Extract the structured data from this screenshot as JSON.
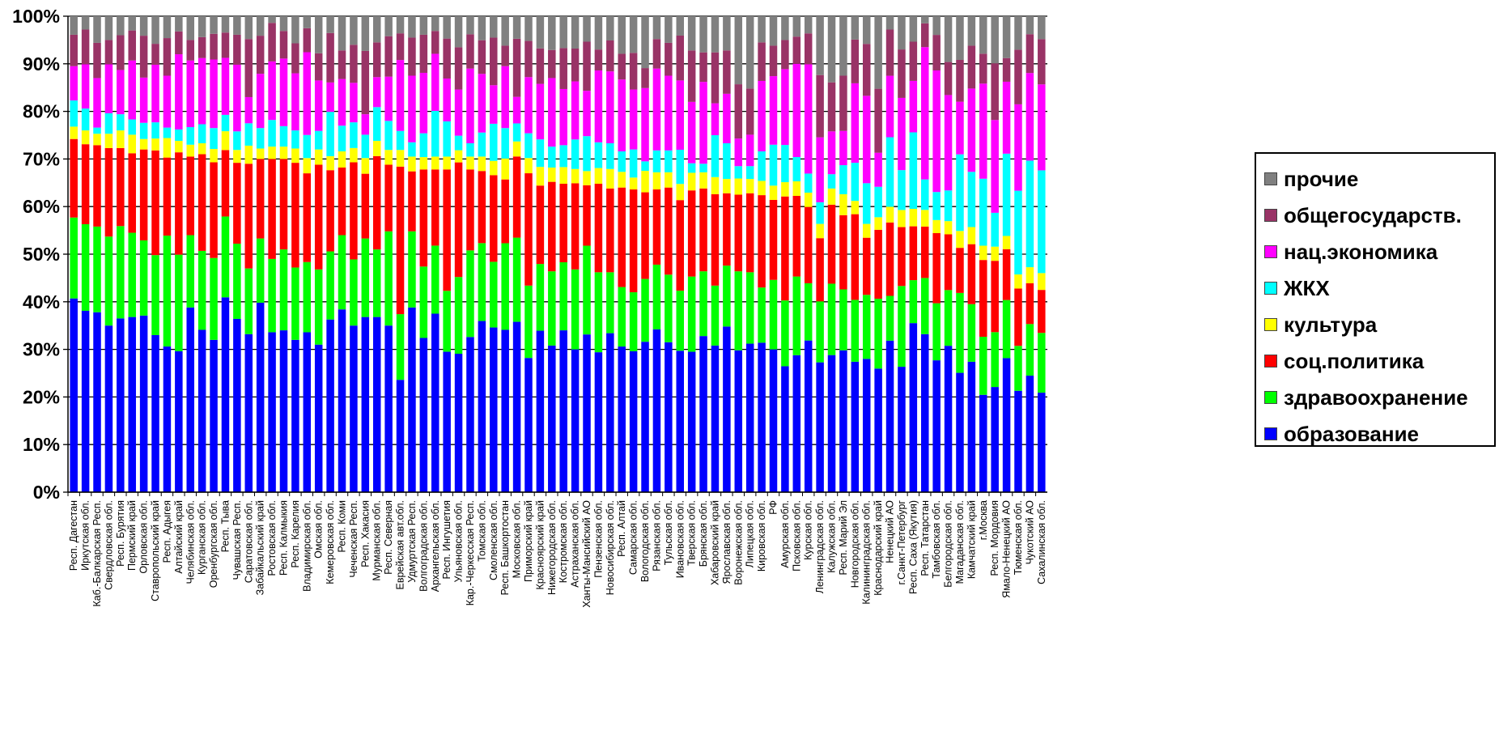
{
  "chart_data": {
    "type": "bar",
    "stacked": true,
    "normalized": true,
    "ylim": [
      0,
      100
    ],
    "y_ticks": [
      "0%",
      "10%",
      "20%",
      "30%",
      "40%",
      "50%",
      "60%",
      "70%",
      "80%",
      "90%",
      "100%"
    ],
    "grid": true,
    "legend_position": "right",
    "categories": [
      "Респ. Дагестан",
      "Иркутская обл.",
      "Каб.-Балкарская Респ.",
      "Свердловская обл.",
      "Респ. Бурятия",
      "Пермский край",
      "Орловская обл.",
      "Ставропольский край",
      "Респ. Адыгея",
      "Алтайский край",
      "Челябинская обл.",
      "Курганская обл.",
      "Оренбургская обл.",
      "Респ. Тыва",
      "Чувашская Респ.",
      "Саратовская обл.",
      "Забайкальский край",
      "Ростовская обл.",
      "Респ. Калмыкия",
      "Респ. Карелия",
      "Владимирская обл.",
      "Омская обл.",
      "Кемеровская обл.",
      "Респ. Коми",
      "Чеченская Респ.",
      "Респ. Хакасия",
      "Мурманская обл.",
      "Респ. Северная",
      "Еврейская авт.обл.",
      "Удмуртская Респ.",
      "Волгоградская обл.",
      "Архангельская обл.",
      "Респ. Ингушетия",
      "Ульяновская обл.",
      "Кар.-Черкесская Респ.",
      "Томская обл.",
      "Смоленская обл.",
      "Респ. Башкортостан",
      "Московская обл.",
      "Приморский край",
      "Красноярский край",
      "Нижегородская обл.",
      "Костромская обл.",
      "Астраханская обл.",
      "Ханты-Мансийский АО",
      "Пензенская обл.",
      "Новосибирская обл.",
      "Респ. Алтай",
      "Самарская обл.",
      "Вологодская обл.",
      "Рязанская обл.",
      "Тульская обл.",
      "Ивановская обл.",
      "Тверская обл.",
      "Брянская обл.",
      "Хабаровский край",
      "Ярославская обл.",
      "Воронежская обл.",
      "Липецкая обл.",
      "Кировская обл.",
      "РФ",
      "Амурская обл.",
      "Псковская обл.",
      "Курская обл.",
      "Ленинградская обл.",
      "Калужская обл.",
      "Респ. Марий Эл",
      "Новгородская обл.",
      "Калининградская обл.",
      "Краснодарский край",
      "Ненецкий АО",
      "г.Санкт-Петербург",
      "Респ. Саха (Якутия)",
      "Респ. Татарстан",
      "Тамбовская обл.",
      "Белгородская обл.",
      "Магаданская обл.",
      "Камчатский край",
      "г.Москва",
      "Респ. Мордовия",
      "Ямало-Ненецкий АО",
      "Тюменская обл.",
      "Чукотский АО",
      "Сахалинская обл."
    ],
    "series": [
      {
        "name": "образование",
        "color": "#0000ff",
        "values": [
          40.7,
          38.1,
          37.8,
          35,
          36.5,
          36.8,
          37.1,
          33,
          30.6,
          29.6,
          38.8,
          34.1,
          32,
          39.3,
          36.4,
          33.2,
          39.8,
          33.6,
          34,
          32,
          34.6,
          31,
          37,
          38.4,
          35,
          36.8,
          36.8,
          35,
          23.6,
          38.8,
          32.4,
          37.5,
          29.5,
          28.5,
          32.6,
          35.6,
          34.6,
          34.1,
          34,
          28.2,
          34.6,
          30.8,
          34,
          30,
          33.4,
          29.4,
          33.4,
          30.6,
          29.6,
          31.6,
          34.2,
          31.5,
          30.6,
          29.5,
          32.8,
          30.8,
          34.8,
          29.8,
          31.2,
          31.4,
          30,
          26.4,
          28.2,
          31.8,
          30,
          28.8,
          29.8,
          27.4,
          30.8,
          27.6,
          31.8,
          26.4,
          35.8,
          33.2,
          28.2,
          31,
          25.4,
          27.4,
          21.8,
          23,
          27.2,
          23,
          24.6,
          21.3
        ]
      },
      {
        "name": "здравоохранение",
        "color": "#00ff00",
        "values": [
          17,
          18.2,
          18,
          18.7,
          19.4,
          17.7,
          15.8,
          16.8,
          23.3,
          20.3,
          15.2,
          16.6,
          17.2,
          16.3,
          15.8,
          13.8,
          13.5,
          15.4,
          17,
          15.2,
          15.2,
          15.8,
          14.6,
          15.6,
          13.9,
          16.5,
          14.2,
          19.8,
          13.8,
          16,
          15,
          14.3,
          12.8,
          15.8,
          18.2,
          16.2,
          13.8,
          18.2,
          16.8,
          15.2,
          14.3,
          15.6,
          14.3,
          16.8,
          18.8,
          16.8,
          12.8,
          12.5,
          12.4,
          13.2,
          13.6,
          14.2,
          13,
          15.8,
          13.6,
          12.6,
          12.8,
          16.6,
          15,
          11.6,
          14.6,
          13.8,
          16.2,
          12,
          14.1,
          15,
          12.8,
          13,
          14.8,
          15.6,
          9.4,
          17,
          9.1,
          11.8,
          12.2,
          11.8,
          17,
          12.1,
          13,
          12,
          11.8,
          10.2,
          10.9,
          12.8
        ]
      },
      {
        "name": "соц.политика",
        "color": "#ff0000",
        "values": [
          16.5,
          16.8,
          17.1,
          18.6,
          16.4,
          16.7,
          19.1,
          22,
          16.4,
          21.5,
          16.5,
          20.3,
          20.1,
          13.4,
          17,
          22,
          16.7,
          21,
          19,
          22,
          19.2,
          22,
          17.4,
          14.2,
          20.4,
          13.6,
          19.6,
          14,
          31,
          12.6,
          20.4,
          16,
          25.5,
          23.6,
          17,
          15,
          18.2,
          13.4,
          16.2,
          23.6,
          16.8,
          18.8,
          16.5,
          18.1,
          12.8,
          18.6,
          17.6,
          20.9,
          21.6,
          18.2,
          15.8,
          18.3,
          19.6,
          18.1,
          17.4,
          19.2,
          15.2,
          16.1,
          16.6,
          19.4,
          16.8,
          21.8,
          16.6,
          16,
          14.6,
          16.6,
          15.6,
          18,
          13.2,
          15.4,
          15.4,
          12.4,
          11.4,
          10.8,
          15,
          11.8,
          9.6,
          12.6,
          17.2,
          15.6,
          10.3,
          13,
          8.6,
          9.2
        ]
      },
      {
        "name": "культура",
        "color": "#ffff00",
        "values": [
          2.6,
          2.9,
          2.4,
          3,
          3.7,
          3.9,
          2.2,
          2.5,
          4.1,
          2.4,
          2.5,
          2.3,
          2.8,
          3.8,
          2.7,
          3.8,
          2.2,
          2.6,
          2.6,
          3,
          3.3,
          3.2,
          3,
          3.4,
          3,
          3.3,
          3.2,
          3.1,
          3.5,
          3.1,
          2.6,
          2.7,
          2.7,
          2.5,
          2.7,
          3,
          3,
          4.4,
          3,
          3.2,
          4,
          3,
          3.5,
          3,
          3,
          3.3,
          4.1,
          3.3,
          2.5,
          4.5,
          3.6,
          3.2,
          3.5,
          3.7,
          3.4,
          3.6,
          3,
          3.4,
          3,
          3,
          3,
          3,
          3,
          3,
          3.3,
          3.4,
          4.4,
          2.8,
          3.2,
          2.8,
          3.3,
          3.6,
          3.7,
          3.5,
          2.8,
          2.8,
          3.6,
          3.6,
          3.2,
          3.1,
          2.7,
          3.2,
          3.4,
          3.6
        ]
      },
      {
        "name": "ЖКХ",
        "color": "#00ffff",
        "values": [
          5.5,
          4.6,
          1.3,
          4.3,
          3.4,
          3.2,
          3.4,
          3.4,
          2.2,
          2.4,
          3.7,
          4,
          4.4,
          3.3,
          3.9,
          4.7,
          4.3,
          5.6,
          4.3,
          3.8,
          5,
          3.9,
          9.5,
          5.4,
          5.4,
          4.9,
          7.1,
          6.1,
          4,
          3,
          5,
          9.6,
          7.4,
          3,
          2.8,
          5,
          7.8,
          6.4,
          3.6,
          5.2,
          5.9,
          4.4,
          4.6,
          6.2,
          7.4,
          5.4,
          5.4,
          4.3,
          5.9,
          2,
          4.6,
          4.6,
          7.4,
          2,
          1.8,
          8.8,
          7.5,
          2.6,
          2.7,
          6.2,
          8.6,
          7.8,
          5,
          4,
          5,
          3,
          6.1,
          8,
          9.4,
          6.8,
          14.6,
          8.4,
          16.2,
          6.4,
          6,
          6.5,
          16.3,
          11.6,
          15,
          7.4,
          16.7,
          19,
          22.5,
          22
        ]
      },
      {
        "name": "нац.экономика",
        "color": "#ff00ff",
        "values": [
          7.2,
          9.3,
          10.4,
          10.3,
          9.3,
          12.4,
          9.5,
          12.1,
          10.9,
          15.8,
          14,
          13.9,
          14.4,
          11.5,
          14,
          5.5,
          11.4,
          12.3,
          14.2,
          12,
          17.9,
          10.6,
          6.3,
          9.8,
          8.3,
          4.3,
          6.3,
          9.3,
          14.9,
          14,
          12.7,
          12,
          9,
          9.5,
          15.7,
          12.2,
          8.1,
          13,
          5.3,
          11.8,
          11.9,
          14.4,
          11.8,
          12.2,
          9.6,
          15.1,
          15.1,
          15.1,
          12.6,
          15.4,
          17.2,
          15.7,
          15,
          12.9,
          17.2,
          6.7,
          10.4,
          5.8,
          6.6,
          14.8,
          14.4,
          15.9,
          19.2,
          22.9,
          15,
          9,
          7.2,
          16.7,
          20.2,
          7.6,
          12.9,
          15.2,
          10.9,
          27.8,
          26,
          20.2,
          11.2,
          17.5,
          21.3,
          20.3,
          14.6,
          19.6,
          18.5,
          18.4
        ]
      },
      {
        "name": "общегосударств.",
        "color": "#993366",
        "values": [
          6.6,
          7.3,
          7.4,
          5.1,
          7.3,
          6.3,
          8.8,
          4.4,
          7.9,
          4.8,
          4.3,
          4.4,
          5.4,
          5.1,
          6.3,
          12.2,
          8,
          8.1,
          5.8,
          6.3,
          5.2,
          5.7,
          10.6,
          6,
          8,
          13.3,
          7.3,
          8.5,
          5.6,
          8,
          8,
          4.8,
          8.4,
          8.7,
          7.2,
          7,
          10,
          4.3,
          11.6,
          7.6,
          7.6,
          5.9,
          8.6,
          6.9,
          10.4,
          4.4,
          6.5,
          5.4,
          7.7,
          4.2,
          6.2,
          6.9,
          9.7,
          10.8,
          6.2,
          10.7,
          9.1,
          11.4,
          9.7,
          8.1,
          6.4,
          6.1,
          5.6,
          6.5,
          14.4,
          10.3,
          11.6,
          9.2,
          12,
          14.3,
          9.7,
          10.2,
          8.3,
          5,
          7.6,
          7,
          8.9,
          9,
          6.7,
          12.4,
          4.8,
          12.4,
          8.2,
          9.7
        ]
      },
      {
        "name": "прочие",
        "color": "#808080",
        "values": [
          3.9,
          2.8,
          5.6,
          5,
          4,
          3,
          4.1,
          5.8,
          4.6,
          3.2,
          5,
          4.4,
          3.7,
          3.3,
          3.9,
          4.8,
          4.1,
          1.4,
          3.1,
          5.7,
          2.6,
          7.8,
          3.6,
          7.2,
          6,
          7.3,
          5.5,
          4.2,
          3.6,
          4.5,
          3.9,
          3.1,
          4.7,
          6.4,
          3.8,
          5,
          4.5,
          6.2,
          4.5,
          5.2,
          6.9,
          7.1,
          6.7,
          6.8,
          5.4,
          7,
          5.1,
          7.9,
          7.7,
          10.9,
          4.8,
          5.6,
          4.2,
          7.2,
          7.6,
          7.6,
          7.2,
          14.3,
          15.2,
          5.5,
          6.2,
          5,
          4.2,
          3.6,
          13.6,
          13.9,
          12.5,
          4.9,
          6.4,
          16.2,
          2.8,
          7,
          5.4,
          1.5,
          4,
          9.7,
          9.3,
          6.2,
          8.4,
          10.3,
          8.5,
          7.6,
          3.8,
          4.9
        ]
      }
    ]
  }
}
